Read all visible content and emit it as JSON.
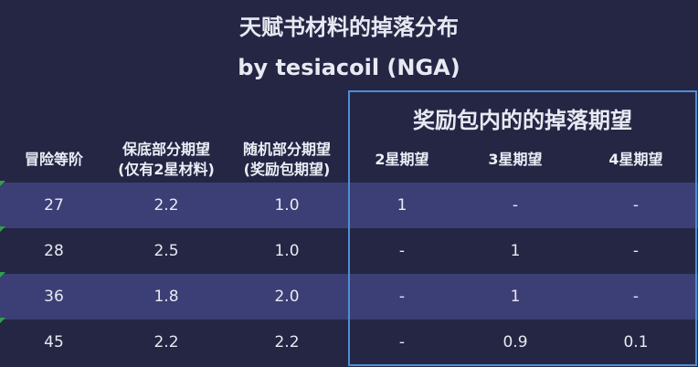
{
  "title": "天赋书材料的掉落分布",
  "subtitle": "by tesiacoil (NGA)",
  "group_title": "奖励包内的的掉落期望",
  "headers": {
    "level": "冒险等阶",
    "base_line1": "保底部分期望",
    "base_line2": "(仅有2星材料)",
    "random_line1": "随机部分期望",
    "random_line2": "(奖励包期望)",
    "star2": "2星期望",
    "star3": "3星期望",
    "star4": "4星期望"
  },
  "rows": [
    {
      "level": "27",
      "base": "2.2",
      "random": "1.0",
      "star2": "1",
      "star3": "-",
      "star4": "-"
    },
    {
      "level": "28",
      "base": "2.5",
      "random": "1.0",
      "star2": "-",
      "star3": "1",
      "star4": "-"
    },
    {
      "level": "36",
      "base": "1.8",
      "random": "2.0",
      "star2": "-",
      "star3": "1",
      "star4": "-"
    },
    {
      "level": "45",
      "base": "2.2",
      "random": "2.2",
      "star2": "-",
      "star3": "0.9",
      "star4": "0.1"
    }
  ],
  "colors": {
    "background": "#242644",
    "row_stripe": "#3c3f75",
    "group_border": "#4d8fd6",
    "flag": "#2da14a"
  }
}
